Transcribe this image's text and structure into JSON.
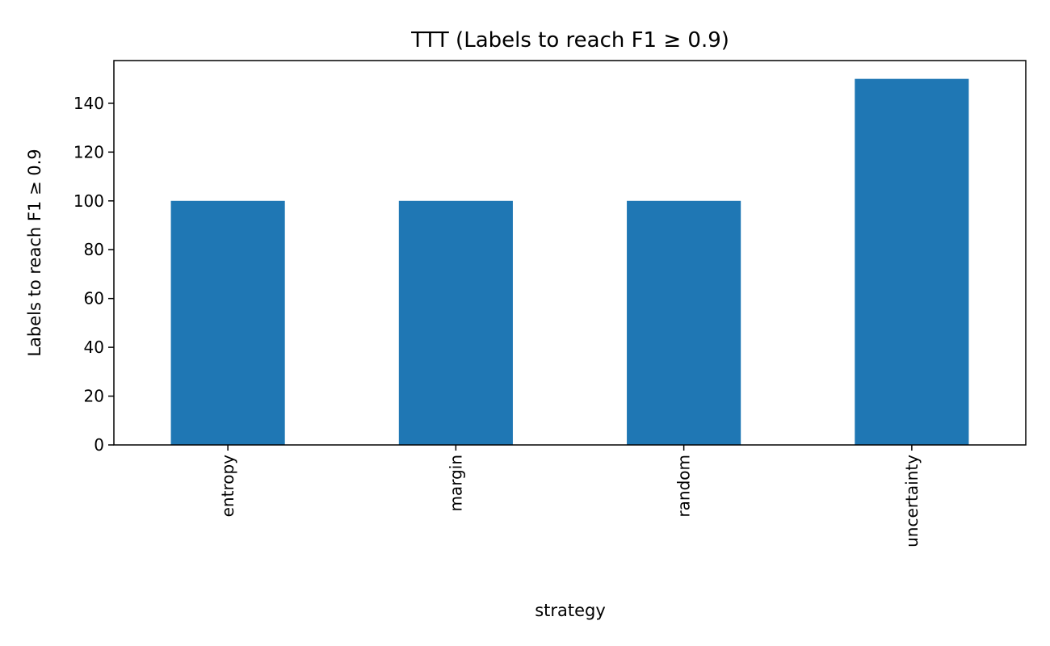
{
  "chart_data": {
    "type": "bar",
    "title": "TTT (Labels to reach F1 ≥ 0.9)",
    "xlabel": "strategy",
    "ylabel": "Labels to reach F1 ≥ 0.9",
    "categories": [
      "entropy",
      "margin",
      "random",
      "uncertainty"
    ],
    "values": [
      100,
      100,
      100,
      150
    ],
    "ylim": [
      0,
      157.5
    ],
    "yticks": [
      0,
      20,
      40,
      60,
      80,
      100,
      120,
      140
    ],
    "bar_color": "#1f77b4",
    "grid": false,
    "legend": "none"
  }
}
